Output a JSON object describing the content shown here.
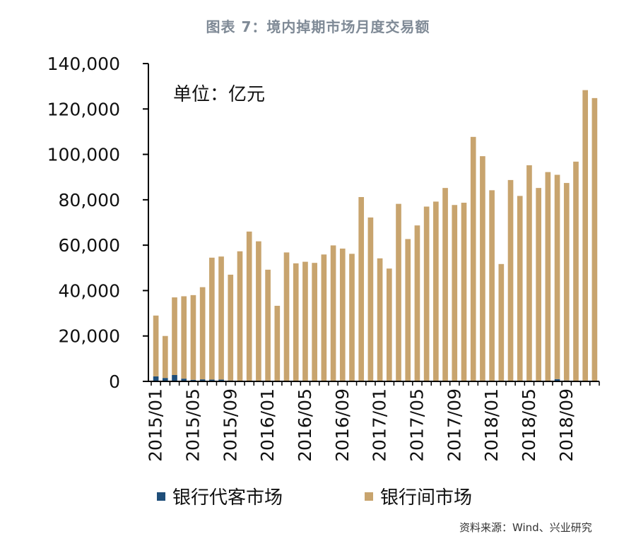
{
  "figure_title": "图表 7：境内掉期市场月度交易额",
  "source": "资料来源：Wind、兴业研究",
  "chart_data": {
    "type": "bar",
    "stacked": true,
    "unit_label": "单位：亿元",
    "ylim": [
      0,
      140000
    ],
    "yticks": [
      "0",
      "20,000",
      "40,000",
      "60,000",
      "80,000",
      "100,000",
      "120,000",
      "140,000"
    ],
    "ytick_values": [
      0,
      20000,
      40000,
      60000,
      80000,
      100000,
      120000,
      140000
    ],
    "xtick_labels": [
      "2015/01",
      "2015/05",
      "2015/09",
      "2016/01",
      "2016/05",
      "2016/09",
      "2017/01",
      "2017/05",
      "2017/09",
      "2018/01",
      "2018/05",
      "2018/09"
    ],
    "categories": [
      "2015/01",
      "2015/02",
      "2015/03",
      "2015/04",
      "2015/05",
      "2015/06",
      "2015/07",
      "2015/08",
      "2015/09",
      "2015/10",
      "2015/11",
      "2015/12",
      "2016/01",
      "2016/02",
      "2016/03",
      "2016/04",
      "2016/05",
      "2016/06",
      "2016/07",
      "2016/08",
      "2016/09",
      "2016/10",
      "2016/11",
      "2016/12",
      "2017/01",
      "2017/02",
      "2017/03",
      "2017/04",
      "2017/05",
      "2017/06",
      "2017/07",
      "2017/08",
      "2017/09",
      "2017/10",
      "2017/11",
      "2017/12",
      "2018/01",
      "2018/02",
      "2018/03",
      "2018/04",
      "2018/05",
      "2018/06",
      "2018/07",
      "2018/08",
      "2018/09",
      "2018/10",
      "2018/11",
      "2018/12"
    ],
    "series": [
      {
        "name": "银行代客市场",
        "color": "#1f4e79",
        "values": [
          2200,
          1500,
          2800,
          1200,
          700,
          900,
          800,
          800,
          400,
          300,
          300,
          200,
          200,
          300,
          300,
          200,
          200,
          200,
          200,
          200,
          200,
          200,
          200,
          200,
          200,
          200,
          200,
          200,
          200,
          200,
          200,
          200,
          200,
          200,
          200,
          200,
          200,
          200,
          200,
          200,
          200,
          200,
          200,
          1000,
          400,
          300,
          300,
          300
        ]
      },
      {
        "name": "银行间市场",
        "color": "#c8a46e",
        "values": [
          26800,
          18500,
          34200,
          36300,
          37300,
          40600,
          53700,
          54200,
          46600,
          57000,
          65700,
          61500,
          49000,
          33000,
          56500,
          51800,
          52500,
          52000,
          55700,
          59700,
          58300,
          56000,
          81000,
          72000,
          54000,
          49500,
          78000,
          62500,
          68500,
          76800,
          79000,
          85000,
          77500,
          78500,
          107500,
          99000,
          84000,
          51500,
          88500,
          81500,
          95000,
          85000,
          92000,
          90000,
          87000,
          96500,
          128000,
          124500
        ]
      }
    ]
  }
}
